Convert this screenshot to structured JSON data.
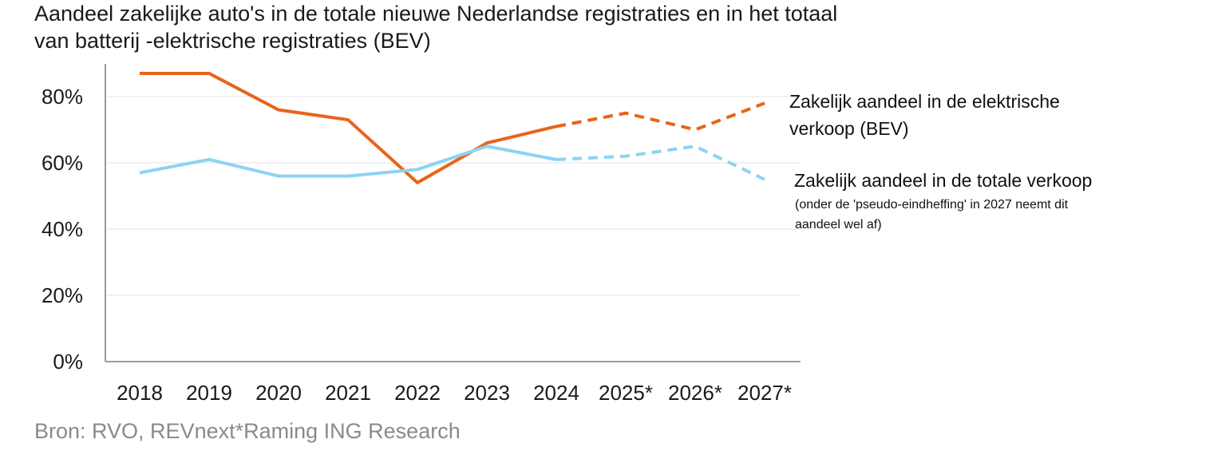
{
  "title_lines": [
    "Aandeel zakelijke auto's in de totale nieuwe Nederlandse registraties en in het totaal",
    "van batterij -elektrische registraties (BEV)"
  ],
  "source": "Bron: RVO, REVnext*Raming ING Research",
  "chart_data": {
    "type": "line",
    "title": "Aandeel zakelijke auto's in de totale nieuwe Nederlandse registraties en in het totaal van batterij -elektrische registraties (BEV)",
    "categories": [
      "2018",
      "2019",
      "2020",
      "2021",
      "2022",
      "2023",
      "2024",
      "2025*",
      "2026*",
      "2027*"
    ],
    "ylim": [
      0,
      90
    ],
    "yticks": [
      0,
      20,
      40,
      60,
      80
    ],
    "ytick_labels": [
      "0%",
      "20%",
      "40%",
      "60%",
      "80%"
    ],
    "grid": "horizontal",
    "forecast_from": "2024",
    "series": [
      {
        "key": "bev",
        "color": "#E8641B",
        "values": [
          87,
          87,
          76,
          73,
          54,
          66,
          71,
          75,
          70,
          78
        ],
        "label_lines": [
          "Zakelijk aandeel in de elektrische",
          "verkoop (BEV)"
        ]
      },
      {
        "key": "total",
        "color": "#8DD3F2",
        "values": [
          57,
          61,
          56,
          56,
          58,
          65,
          61,
          62,
          65,
          55
        ],
        "label_lines": [
          "Zakelijk aandeel in de totale verkoop"
        ],
        "sub_lines": [
          "(onder de 'pseudo-eindheffing' in 2027 neemt dit",
          "aandeel wel af)"
        ]
      }
    ]
  }
}
